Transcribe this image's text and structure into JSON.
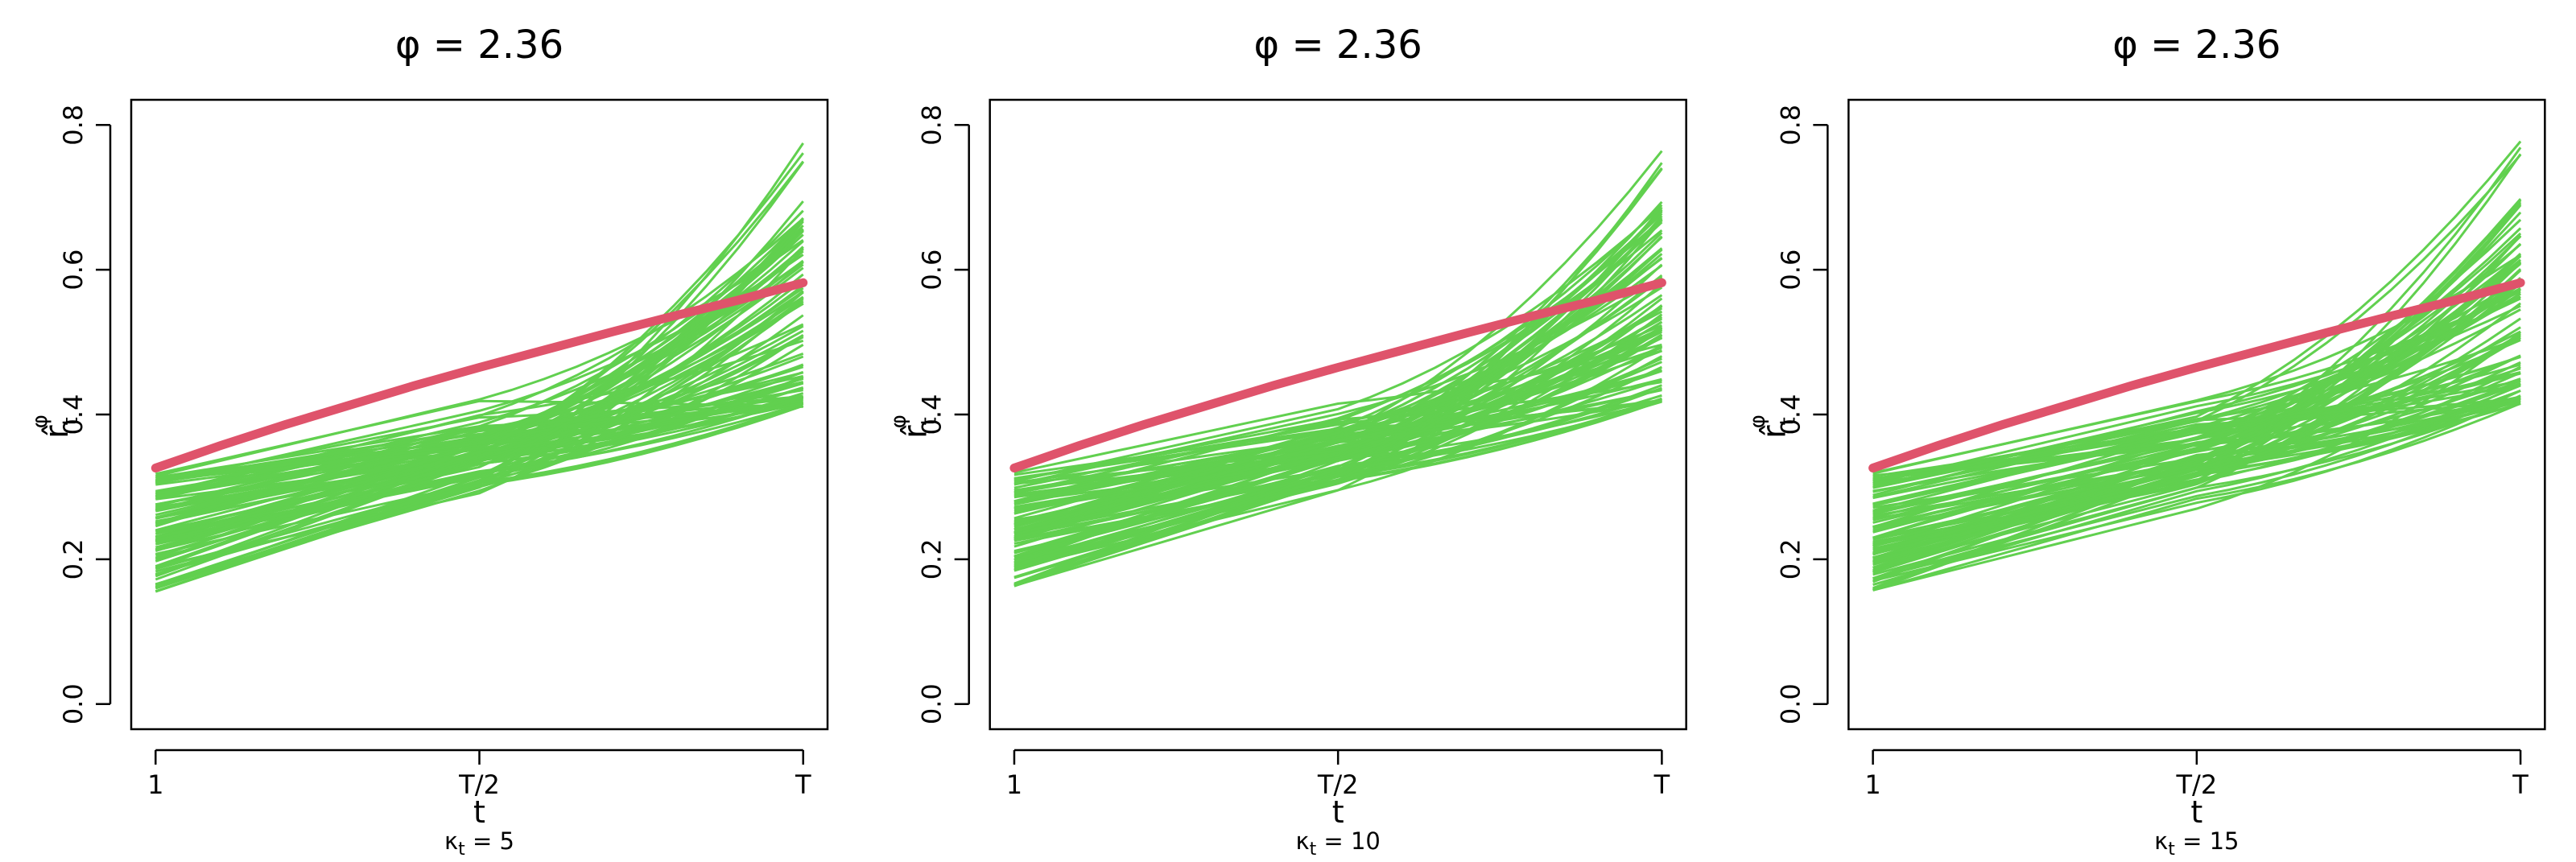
{
  "chart_data": [
    {
      "type": "line",
      "title": "φ = 2.36",
      "xlabel": "t",
      "sublabel": {
        "base": "κ",
        "sub": "t",
        "rest": " = 5"
      },
      "ylabel": {
        "base": "r̂",
        "sub": "t",
        "sup": "φ"
      },
      "xticks": [
        "1",
        "T/2",
        "T"
      ],
      "yticks": [
        "0.0",
        "0.2",
        "0.4",
        "0.6",
        "0.8"
      ],
      "ylim": [
        0,
        0.8
      ],
      "colors": {
        "reference": "#DF536B",
        "simulated": "#61D04F"
      },
      "reference_curve": {
        "x": [
          0,
          0.1,
          0.2,
          0.3,
          0.4,
          0.5,
          0.6,
          0.7,
          0.8,
          0.9,
          1.0
        ],
        "y": [
          0.326,
          0.357,
          0.386,
          0.413,
          0.44,
          0.465,
          0.489,
          0.513,
          0.536,
          0.558,
          0.582
        ]
      },
      "simulated_band": {
        "start_range": [
          0.155,
          0.318
        ],
        "mid_range": [
          0.28,
          0.41
        ],
        "end_range": [
          0.41,
          0.775
        ],
        "n_paths": 90
      }
    },
    {
      "type": "line",
      "title": "φ = 2.36",
      "xlabel": "t",
      "sublabel": {
        "base": "κ",
        "sub": "t",
        "rest": " = 10"
      },
      "ylabel": {
        "base": "r̂",
        "sub": "t",
        "sup": "φ"
      },
      "xticks": [
        "1",
        "T/2",
        "T"
      ],
      "yticks": [
        "0.0",
        "0.2",
        "0.4",
        "0.6",
        "0.8"
      ],
      "ylim": [
        0,
        0.8
      ],
      "colors": {
        "reference": "#DF536B",
        "simulated": "#61D04F"
      },
      "reference_curve": {
        "x": [
          0,
          0.1,
          0.2,
          0.3,
          0.4,
          0.5,
          0.6,
          0.7,
          0.8,
          0.9,
          1.0
        ],
        "y": [
          0.326,
          0.357,
          0.386,
          0.413,
          0.44,
          0.465,
          0.489,
          0.513,
          0.536,
          0.558,
          0.582
        ]
      },
      "simulated_band": {
        "start_range": [
          0.158,
          0.32
        ],
        "mid_range": [
          0.28,
          0.41
        ],
        "end_range": [
          0.415,
          0.778
        ],
        "n_paths": 90
      }
    },
    {
      "type": "line",
      "title": "φ = 2.36",
      "xlabel": "t",
      "sublabel": {
        "base": "κ",
        "sub": "t",
        "rest": " = 15"
      },
      "ylabel": {
        "base": "r̂",
        "sub": "t",
        "sup": "φ"
      },
      "xticks": [
        "1",
        "T/2",
        "T"
      ],
      "yticks": [
        "0.0",
        "0.2",
        "0.4",
        "0.6",
        "0.8"
      ],
      "ylim": [
        0,
        0.8
      ],
      "colors": {
        "reference": "#DF536B",
        "simulated": "#61D04F"
      },
      "reference_curve": {
        "x": [
          0,
          0.1,
          0.2,
          0.3,
          0.4,
          0.5,
          0.6,
          0.7,
          0.8,
          0.9,
          1.0
        ],
        "y": [
          0.326,
          0.357,
          0.386,
          0.413,
          0.44,
          0.465,
          0.489,
          0.513,
          0.536,
          0.558,
          0.582
        ]
      },
      "simulated_band": {
        "start_range": [
          0.157,
          0.32
        ],
        "mid_range": [
          0.28,
          0.41
        ],
        "end_range": [
          0.415,
          0.78
        ],
        "n_paths": 90
      }
    }
  ]
}
